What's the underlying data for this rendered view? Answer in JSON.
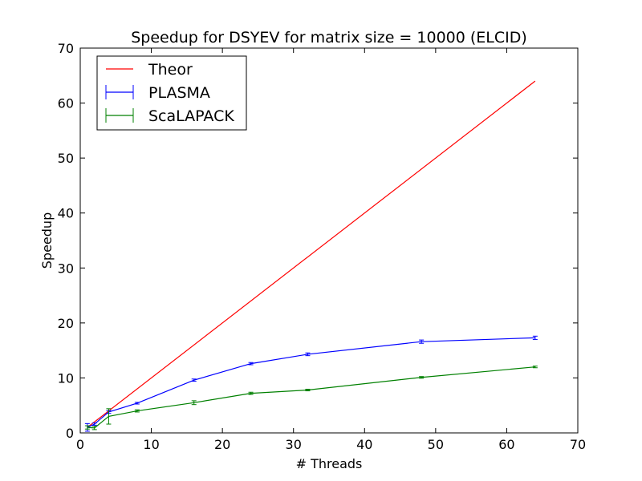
{
  "chart_data": {
    "type": "line",
    "title": "Speedup for DSYEV for matrix size = 10000 (ELCID)",
    "xlabel": "# Threads",
    "ylabel": "Speedup",
    "xlim": [
      0,
      70
    ],
    "ylim": [
      0,
      70
    ],
    "xticks": [
      0,
      10,
      20,
      30,
      40,
      50,
      60,
      70
    ],
    "yticks": [
      0,
      10,
      20,
      30,
      40,
      50,
      60,
      70
    ],
    "grid": false,
    "legend_position": "top-left",
    "series": [
      {
        "name": "Theor",
        "color": "#ff0000",
        "errorbars": false,
        "points": [
          {
            "x": 1,
            "y": 1
          },
          {
            "x": 64,
            "y": 64
          }
        ]
      },
      {
        "name": "PLASMA",
        "color": "#0000ff",
        "errorbars": true,
        "points": [
          {
            "x": 1,
            "y": 1.0,
            "err": 0.7
          },
          {
            "x": 2,
            "y": 1.6,
            "err": 0.2
          },
          {
            "x": 4,
            "y": 3.8,
            "err": 0.25
          },
          {
            "x": 8,
            "y": 5.4,
            "err": 0.15
          },
          {
            "x": 16,
            "y": 9.6,
            "err": 0.2
          },
          {
            "x": 24,
            "y": 12.6,
            "err": 0.2
          },
          {
            "x": 32,
            "y": 14.3,
            "err": 0.25
          },
          {
            "x": 48,
            "y": 16.6,
            "err": 0.3
          },
          {
            "x": 64,
            "y": 17.3,
            "err": 0.3
          }
        ]
      },
      {
        "name": "ScaLAPACK",
        "color": "#008000",
        "errorbars": true,
        "points": [
          {
            "x": 1,
            "y": 1.0,
            "err": 0.3
          },
          {
            "x": 2,
            "y": 0.9,
            "err": 0.3
          },
          {
            "x": 4,
            "y": 3.0,
            "err": 1.4
          },
          {
            "x": 8,
            "y": 4.0,
            "err": 0.2
          },
          {
            "x": 16,
            "y": 5.5,
            "err": 0.35
          },
          {
            "x": 24,
            "y": 7.2,
            "err": 0.2
          },
          {
            "x": 32,
            "y": 7.8,
            "err": 0.15
          },
          {
            "x": 48,
            "y": 10.1,
            "err": 0.15
          },
          {
            "x": 64,
            "y": 12.0,
            "err": 0.15
          }
        ]
      }
    ]
  }
}
